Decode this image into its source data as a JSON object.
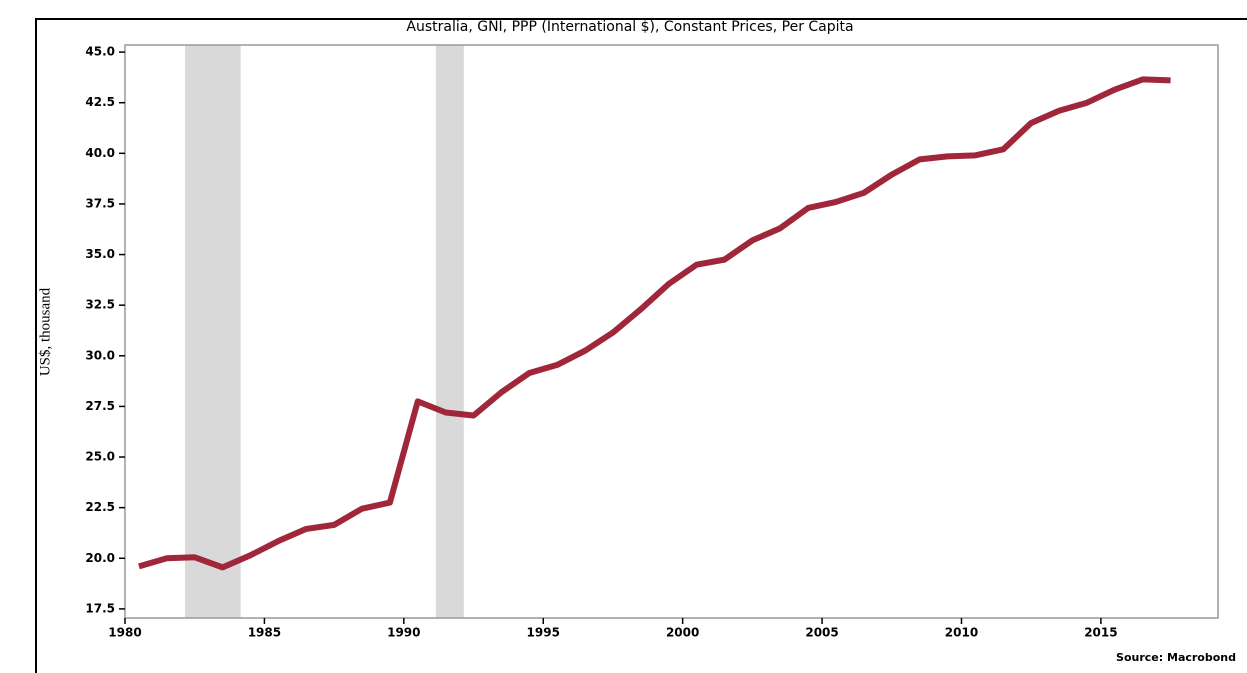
{
  "chart_data": {
    "type": "line",
    "title": "Australia, GNI, PPP (International $), Constant Prices, Per Capita",
    "y_label": "US$, thousand",
    "source": "Source: Macrobond",
    "x": [
      1980.5,
      1981.5,
      1982.5,
      1983.5,
      1984.5,
      1985.5,
      1986.5,
      1987.5,
      1988.5,
      1989.5,
      1990.5,
      1991.5,
      1992.5,
      1993.5,
      1994.5,
      1995.5,
      1996.5,
      1997.5,
      1998.5,
      1999.5,
      2000.5,
      2001.5,
      2002.5,
      2003.5,
      2004.5,
      2005.5,
      2006.5,
      2007.5,
      2008.5,
      2009.5,
      2010.5,
      2011.5,
      2012.5,
      2013.5,
      2014.5,
      2015.5,
      2016.5,
      2017.5
    ],
    "series": [
      {
        "color": "#a0263a",
        "values": [
          19.6,
          20.0,
          20.05,
          19.55,
          20.15,
          20.85,
          21.45,
          21.65,
          22.45,
          22.75,
          27.75,
          27.2,
          27.05,
          28.2,
          29.15,
          29.55,
          30.25,
          31.15,
          32.3,
          33.55,
          34.5,
          34.75,
          35.7,
          36.3,
          37.3,
          37.6,
          38.05,
          38.95,
          39.7,
          39.85,
          39.9,
          40.2,
          41.5,
          42.1,
          42.5,
          43.15,
          43.65,
          43.6
        ]
      }
    ],
    "shaded_periods": [
      [
        1982.15,
        1984.15
      ],
      [
        1991.15,
        1992.15
      ]
    ],
    "shade_color": "#d9d9d9",
    "xlim": [
      1980,
      2019.2
    ],
    "xticks": [
      1980,
      1985,
      1990,
      1995,
      2000,
      2005,
      2010,
      2015
    ],
    "ylim": [
      17.05,
      45.35
    ],
    "yticks": [
      {
        "value": 17.5,
        "label": "17.5"
      },
      {
        "value": 20,
        "label": "20.0"
      },
      {
        "value": 22.5,
        "label": "22.5"
      },
      {
        "value": 25,
        "label": "25.0"
      },
      {
        "value": 27.5,
        "label": "27.5"
      },
      {
        "value": 30,
        "label": "30.0"
      },
      {
        "value": 32.5,
        "label": "32.5"
      },
      {
        "value": 35,
        "label": "35.0"
      },
      {
        "value": 37.5,
        "label": "37.5"
      },
      {
        "value": 40,
        "label": "40.0"
      },
      {
        "value": 42.5,
        "label": "42.5"
      },
      {
        "value": 45,
        "label": "45.0"
      }
    ]
  }
}
